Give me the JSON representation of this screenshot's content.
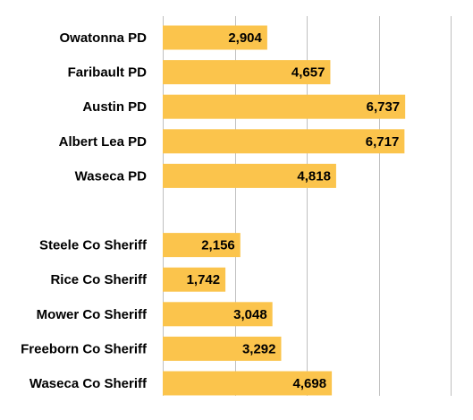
{
  "chart_data": {
    "type": "bar",
    "orientation": "horizontal",
    "title": "",
    "xlabel": "",
    "ylabel": "",
    "grid": true,
    "xlim": [
      0,
      8000
    ],
    "bar_color": "#fbc44c",
    "grid_color": "#bfbfbf",
    "categories": [
      "Owatonna PD",
      "Faribault PD",
      "Austin PD",
      "Albert Lea PD",
      "Waseca PD",
      "",
      "Steele Co Sheriff",
      "Rice Co Sheriff",
      "Mower Co Sheriff",
      "Freeborn Co Sheriff",
      "Waseca Co Sheriff"
    ],
    "values": [
      2904,
      4657,
      6737,
      6717,
      4818,
      null,
      2156,
      1742,
      3048,
      3292,
      4698
    ],
    "data_labels": [
      "2,904",
      "4,657",
      "6,737",
      "6,717",
      "4,818",
      "",
      "2,156",
      "1,742",
      "3,048",
      "3,292",
      "4,698"
    ]
  }
}
